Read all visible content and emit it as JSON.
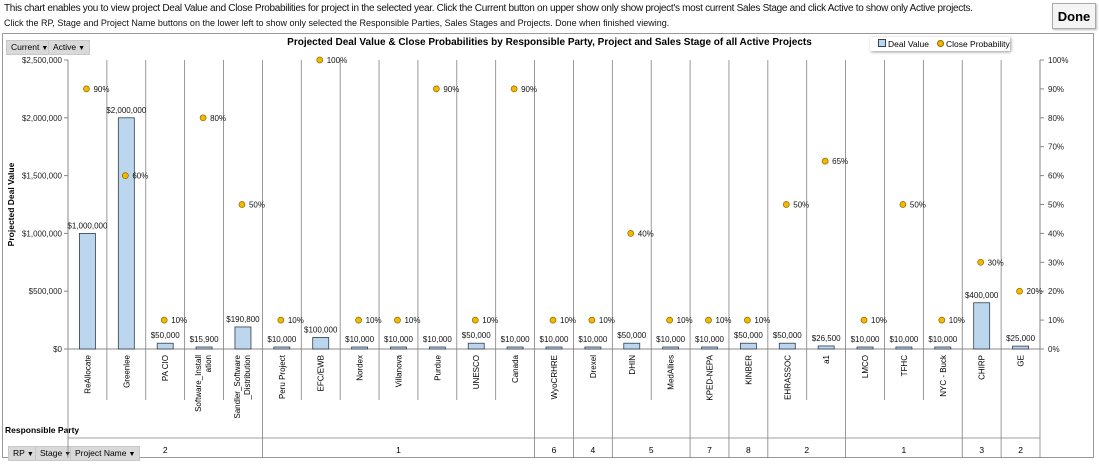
{
  "instructions": {
    "line1": "This chart enables you to view project Deal Value and Close Probabilities for project in the selected year. Click the Current button on upper show only show project's most current Sales Stage and click Active to show only Active projects.",
    "line2": "Click the RP, Stage and Project Name buttons on the lower left to show only selected the Responsible Parties, Sales Stages and Projects. Done when finished viewing."
  },
  "done_label": "Done",
  "filters_top": [
    {
      "label": "Current"
    },
    {
      "label": "Active"
    }
  ],
  "filters_bottom": [
    {
      "label": "RP"
    },
    {
      "label": "Stage"
    },
    {
      "label": "Project Name"
    }
  ],
  "row_field_label": "Responsible Party",
  "colors": {
    "bar": "#bcd6ee",
    "bar_border": "#2f3e4e",
    "dot": "#f5b800",
    "dot_border": "#8a6a00",
    "grid": "#808080"
  },
  "chart_data": {
    "type": "bar+scatter",
    "title": "Projected Deal Value & Close Probabilities by Responsible Party, Project and Sales Stage of all Active Projects",
    "ylabel": "Projected Deal Value",
    "ylim": [
      0,
      2500000
    ],
    "y_ticks": [
      "$0",
      "$500,000",
      "$1,000,000",
      "$1,500,000",
      "$2,000,000",
      "$2,500,000"
    ],
    "y2lim": [
      0,
      100
    ],
    "y2_ticks": [
      "0%",
      "10%",
      "20%",
      "30%",
      "40%",
      "50%",
      "60%",
      "70%",
      "80%",
      "90%",
      "100%"
    ],
    "categories": [
      "ReAllocate",
      "Greenlee",
      "PA CIO",
      "Software_Installation",
      "Sandler_Software_Distribution",
      "Peru Project",
      "EFC/EWB",
      "Nordex",
      "Villanova",
      "Purdue",
      "UNESCO",
      "Canada",
      "WyoCRHRE",
      "Drexel",
      "DHIN",
      "MedAllies",
      "KPED-NEPA",
      "KINBER",
      "EHRASSOC",
      "a1",
      "LMCO",
      "TFHC",
      "NYC - Buck",
      "CHIRP",
      "GE"
    ],
    "series": [
      {
        "name": "Deal Value",
        "values": [
          1000000,
          2000000,
          50000,
          15900,
          190800,
          10000,
          100000,
          10000,
          10000,
          10000,
          50000,
          10000,
          10000,
          10000,
          50000,
          10000,
          10000,
          50000,
          50000,
          26500,
          10000,
          10000,
          10000,
          400000,
          25000
        ],
        "labels": [
          "$1,000,000",
          "$2,000,000",
          "$50,000",
          "$15,900",
          "$190,800",
          "$10,000",
          "$100,000",
          "$10,000",
          "$10,000",
          "$10,000",
          "$50,000",
          "$10,000",
          "$10,000",
          "$10,000",
          "$50,000",
          "$10,000",
          "$10,000",
          "$50,000",
          "$50,000",
          "$26,500",
          "$10,000",
          "$10,000",
          "$10,000",
          "$400,000",
          "$25,000"
        ]
      },
      {
        "name": "Close Probability",
        "values": [
          90,
          60,
          10,
          80,
          50,
          10,
          100,
          10,
          10,
          90,
          10,
          90,
          10,
          10,
          40,
          10,
          10,
          10,
          50,
          65,
          10,
          50,
          10,
          30,
          20
        ],
        "labels": [
          "90%",
          "60%",
          "10%",
          "80%",
          "50%",
          "10%",
          "100%",
          "10%",
          "10%",
          "90%",
          "10%",
          "90%",
          "10%",
          "10%",
          "40%",
          "10%",
          "10%",
          "10%",
          "50%",
          "65%",
          "10%",
          "50%",
          "10%",
          "30%",
          "20%"
        ]
      }
    ],
    "groups": [
      {
        "label": "2",
        "count": 5
      },
      {
        "label": "1",
        "count": 7
      },
      {
        "label": "6",
        "count": 1
      },
      {
        "label": "4",
        "count": 1
      },
      {
        "label": "5",
        "count": 2
      },
      {
        "label": "7",
        "count": 1
      },
      {
        "label": "8",
        "count": 1
      },
      {
        "label": "2",
        "count": 2
      },
      {
        "label": "1",
        "count": 3
      },
      {
        "label": "3",
        "count": 1
      },
      {
        "label": "2",
        "count": 1
      }
    ],
    "legend": {
      "position": "bottom",
      "entries": [
        "Deal Value",
        "Close Probability"
      ]
    }
  }
}
